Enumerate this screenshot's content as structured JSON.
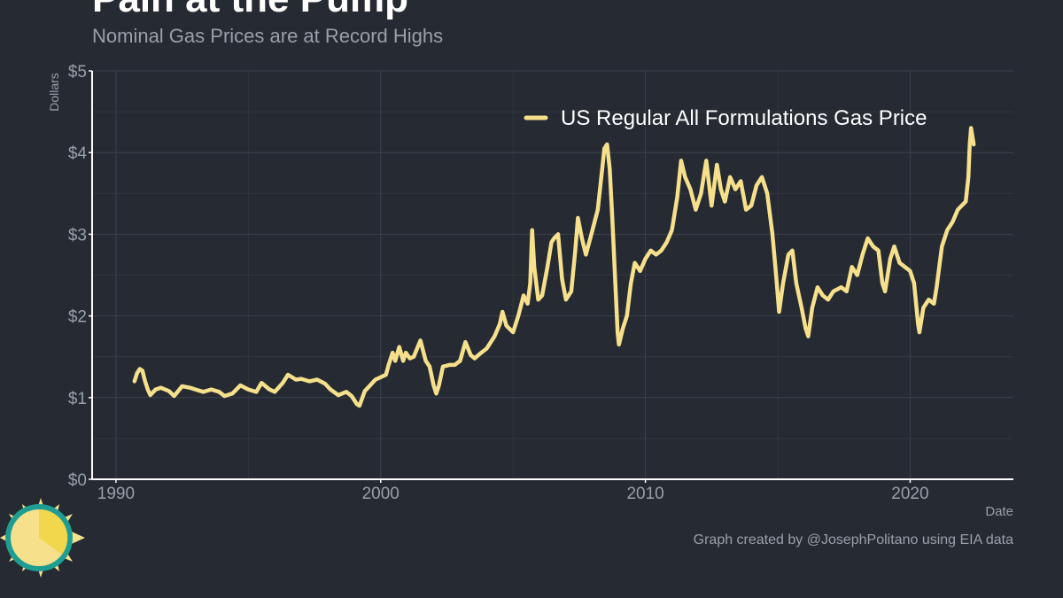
{
  "chart_data": {
    "type": "line",
    "title": "Pain at the Pump",
    "subtitle": "Nominal Gas Prices are at Record Highs",
    "xlabel": "Date",
    "ylabel": "Dollars",
    "xlim": [
      1989.1,
      2023.9
    ],
    "ylim": [
      0,
      5
    ],
    "x_ticks": [
      1990,
      2000,
      2010,
      2020
    ],
    "x_tick_labels": [
      "1990",
      "2000",
      "2010",
      "2020"
    ],
    "y_ticks": [
      0,
      1,
      2,
      3,
      4,
      5
    ],
    "y_tick_labels": [
      "$0",
      "$1",
      "$2",
      "$3",
      "$4",
      "$5"
    ],
    "grid": true,
    "legend_position": "top-right",
    "series": [
      {
        "name": "US Regular All Formulations Gas Price",
        "color": "#f6e08b",
        "points": [
          [
            1990.7,
            1.2
          ],
          [
            1990.8,
            1.3
          ],
          [
            1990.9,
            1.35
          ],
          [
            1991.0,
            1.33
          ],
          [
            1991.1,
            1.2
          ],
          [
            1991.2,
            1.1
          ],
          [
            1991.3,
            1.03
          ],
          [
            1991.5,
            1.1
          ],
          [
            1991.7,
            1.12
          ],
          [
            1992.0,
            1.08
          ],
          [
            1992.2,
            1.02
          ],
          [
            1992.5,
            1.14
          ],
          [
            1992.8,
            1.12
          ],
          [
            1993.0,
            1.1
          ],
          [
            1993.3,
            1.07
          ],
          [
            1993.6,
            1.1
          ],
          [
            1993.9,
            1.07
          ],
          [
            1994.1,
            1.02
          ],
          [
            1994.4,
            1.05
          ],
          [
            1994.7,
            1.15
          ],
          [
            1995.0,
            1.1
          ],
          [
            1995.3,
            1.07
          ],
          [
            1995.5,
            1.18
          ],
          [
            1995.8,
            1.1
          ],
          [
            1996.0,
            1.07
          ],
          [
            1996.3,
            1.18
          ],
          [
            1996.5,
            1.28
          ],
          [
            1996.8,
            1.22
          ],
          [
            1997.0,
            1.23
          ],
          [
            1997.3,
            1.2
          ],
          [
            1997.6,
            1.22
          ],
          [
            1997.9,
            1.17
          ],
          [
            1998.1,
            1.1
          ],
          [
            1998.4,
            1.03
          ],
          [
            1998.7,
            1.07
          ],
          [
            1998.9,
            1.02
          ],
          [
            1999.1,
            0.92
          ],
          [
            1999.2,
            0.9
          ],
          [
            1999.4,
            1.08
          ],
          [
            1999.6,
            1.15
          ],
          [
            1999.8,
            1.22
          ],
          [
            2000.0,
            1.25
          ],
          [
            2000.2,
            1.28
          ],
          [
            2000.3,
            1.4
          ],
          [
            2000.45,
            1.55
          ],
          [
            2000.55,
            1.45
          ],
          [
            2000.7,
            1.62
          ],
          [
            2000.85,
            1.45
          ],
          [
            2000.95,
            1.55
          ],
          [
            2001.1,
            1.48
          ],
          [
            2001.25,
            1.5
          ],
          [
            2001.4,
            1.62
          ],
          [
            2001.5,
            1.7
          ],
          [
            2001.7,
            1.45
          ],
          [
            2001.85,
            1.38
          ],
          [
            2002.0,
            1.15
          ],
          [
            2002.1,
            1.05
          ],
          [
            2002.2,
            1.15
          ],
          [
            2002.35,
            1.38
          ],
          [
            2002.6,
            1.4
          ],
          [
            2002.8,
            1.4
          ],
          [
            2003.0,
            1.45
          ],
          [
            2003.2,
            1.68
          ],
          [
            2003.4,
            1.52
          ],
          [
            2003.55,
            1.48
          ],
          [
            2003.8,
            1.55
          ],
          [
            2004.0,
            1.6
          ],
          [
            2004.3,
            1.75
          ],
          [
            2004.5,
            1.9
          ],
          [
            2004.6,
            2.05
          ],
          [
            2004.75,
            1.88
          ],
          [
            2005.0,
            1.8
          ],
          [
            2005.2,
            2.0
          ],
          [
            2005.4,
            2.25
          ],
          [
            2005.55,
            2.15
          ],
          [
            2005.65,
            2.4
          ],
          [
            2005.72,
            3.05
          ],
          [
            2005.8,
            2.6
          ],
          [
            2005.95,
            2.2
          ],
          [
            2006.1,
            2.25
          ],
          [
            2006.3,
            2.6
          ],
          [
            2006.45,
            2.9
          ],
          [
            2006.55,
            2.95
          ],
          [
            2006.7,
            3.0
          ],
          [
            2006.85,
            2.45
          ],
          [
            2007.0,
            2.2
          ],
          [
            2007.2,
            2.3
          ],
          [
            2007.35,
            2.8
          ],
          [
            2007.45,
            3.2
          ],
          [
            2007.6,
            2.95
          ],
          [
            2007.75,
            2.75
          ],
          [
            2008.0,
            3.05
          ],
          [
            2008.2,
            3.3
          ],
          [
            2008.35,
            3.75
          ],
          [
            2008.45,
            4.05
          ],
          [
            2008.55,
            4.1
          ],
          [
            2008.65,
            3.8
          ],
          [
            2008.75,
            3.2
          ],
          [
            2008.85,
            2.5
          ],
          [
            2008.95,
            1.8
          ],
          [
            2009.0,
            1.65
          ],
          [
            2009.15,
            1.85
          ],
          [
            2009.3,
            2.0
          ],
          [
            2009.45,
            2.4
          ],
          [
            2009.6,
            2.65
          ],
          [
            2009.8,
            2.55
          ],
          [
            2010.0,
            2.7
          ],
          [
            2010.2,
            2.8
          ],
          [
            2010.4,
            2.75
          ],
          [
            2010.6,
            2.8
          ],
          [
            2010.8,
            2.9
          ],
          [
            2011.0,
            3.05
          ],
          [
            2011.2,
            3.45
          ],
          [
            2011.35,
            3.9
          ],
          [
            2011.5,
            3.7
          ],
          [
            2011.7,
            3.55
          ],
          [
            2011.9,
            3.3
          ],
          [
            2012.1,
            3.5
          ],
          [
            2012.3,
            3.9
          ],
          [
            2012.5,
            3.35
          ],
          [
            2012.7,
            3.85
          ],
          [
            2012.85,
            3.55
          ],
          [
            2013.0,
            3.4
          ],
          [
            2013.2,
            3.7
          ],
          [
            2013.4,
            3.55
          ],
          [
            2013.6,
            3.65
          ],
          [
            2013.8,
            3.3
          ],
          [
            2014.0,
            3.35
          ],
          [
            2014.2,
            3.6
          ],
          [
            2014.4,
            3.7
          ],
          [
            2014.6,
            3.5
          ],
          [
            2014.8,
            3.0
          ],
          [
            2014.95,
            2.45
          ],
          [
            2015.05,
            2.05
          ],
          [
            2015.2,
            2.4
          ],
          [
            2015.4,
            2.75
          ],
          [
            2015.55,
            2.8
          ],
          [
            2015.7,
            2.4
          ],
          [
            2015.9,
            2.1
          ],
          [
            2016.05,
            1.85
          ],
          [
            2016.15,
            1.75
          ],
          [
            2016.3,
            2.1
          ],
          [
            2016.5,
            2.35
          ],
          [
            2016.7,
            2.25
          ],
          [
            2016.9,
            2.2
          ],
          [
            2017.1,
            2.3
          ],
          [
            2017.4,
            2.35
          ],
          [
            2017.6,
            2.3
          ],
          [
            2017.8,
            2.6
          ],
          [
            2018.0,
            2.5
          ],
          [
            2018.2,
            2.75
          ],
          [
            2018.4,
            2.95
          ],
          [
            2018.6,
            2.85
          ],
          [
            2018.8,
            2.8
          ],
          [
            2018.95,
            2.4
          ],
          [
            2019.05,
            2.3
          ],
          [
            2019.25,
            2.7
          ],
          [
            2019.4,
            2.85
          ],
          [
            2019.6,
            2.65
          ],
          [
            2019.8,
            2.6
          ],
          [
            2020.0,
            2.55
          ],
          [
            2020.15,
            2.4
          ],
          [
            2020.3,
            1.9
          ],
          [
            2020.35,
            1.8
          ],
          [
            2020.5,
            2.1
          ],
          [
            2020.7,
            2.2
          ],
          [
            2020.9,
            2.15
          ],
          [
            2021.0,
            2.35
          ],
          [
            2021.2,
            2.85
          ],
          [
            2021.4,
            3.05
          ],
          [
            2021.6,
            3.15
          ],
          [
            2021.8,
            3.3
          ],
          [
            2021.95,
            3.35
          ],
          [
            2022.1,
            3.4
          ],
          [
            2022.2,
            3.7
          ],
          [
            2022.25,
            4.1
          ],
          [
            2022.3,
            4.3
          ],
          [
            2022.4,
            4.1
          ]
        ]
      }
    ]
  },
  "credit": "Graph created by @JosephPolitano using EIA data",
  "logo": {
    "name": "sun-logo",
    "colors": [
      "#f6e08b",
      "#1e9e92",
      "#f2d64b"
    ]
  }
}
